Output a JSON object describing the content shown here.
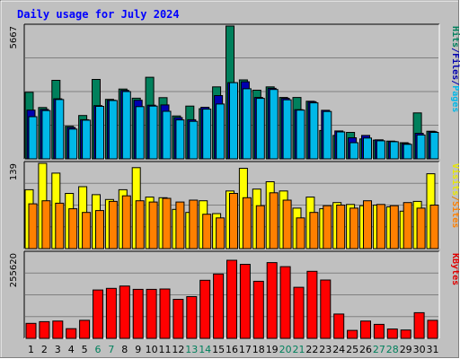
{
  "chart_data": {
    "type": "bar",
    "title": "Daily usage for July 2024",
    "days": [
      "1",
      "2",
      "3",
      "4",
      "5",
      "6",
      "7",
      "8",
      "9",
      "10",
      "11",
      "12",
      "13",
      "14",
      "15",
      "16",
      "17",
      "18",
      "19",
      "20",
      "21",
      "22",
      "23",
      "24",
      "25",
      "26",
      "27",
      "28",
      "29",
      "30",
      "31"
    ],
    "weekend_days": [
      "6",
      "7",
      "13",
      "14",
      "20",
      "21",
      "27",
      "28"
    ],
    "panels": [
      {
        "id": "hits",
        "ymax_label": "5667",
        "ymax": 5667,
        "labels": [
          {
            "text": "Hits",
            "color": "#00805c"
          },
          {
            "text": "/",
            "color": "#0000b0"
          },
          {
            "text": "Files",
            "color": "#0000b0"
          },
          {
            "text": "/",
            "color": "#0000b0"
          },
          {
            "text": "Pages",
            "color": "#00b8e8"
          }
        ],
        "series": [
          {
            "name": "Hits",
            "color": "#00805c",
            "values": [
              2840,
              2190,
              3350,
              1390,
              1850,
              3390,
              2540,
              2980,
              2590,
              3480,
              2610,
              1830,
              2250,
              2140,
              3070,
              5667,
              3370,
              2930,
              3070,
              2620,
              2620,
              2460,
              1210,
              1000,
              1130,
              850,
              800,
              760,
              690,
              1960,
              1180
            ]
          },
          {
            "name": "Files",
            "color": "#0000b0",
            "values": [
              2080,
              2110,
              2560,
              1340,
              1670,
              2270,
              2500,
              2920,
              2500,
              2290,
              2300,
              1760,
              1670,
              2200,
              2700,
              3250,
              3290,
              2620,
              3010,
              2580,
              2100,
              2440,
              2070,
              1190,
              900,
              1000,
              810,
              740,
              650,
              1090,
              1160
            ]
          },
          {
            "name": "Pages",
            "color": "#00b8e8",
            "values": [
              1800,
              2060,
              2530,
              1270,
              1650,
              2240,
              2490,
              2870,
              2230,
              2250,
              2030,
              1660,
              1600,
              2120,
              2340,
              3250,
              2990,
              2580,
              2960,
              2520,
              2080,
              2390,
              2020,
              1150,
              690,
              890,
              770,
              730,
              620,
              1020,
              1130
            ]
          }
        ]
      },
      {
        "id": "visits",
        "ymax_label": "139",
        "ymax": 139,
        "labels": [
          {
            "text": "Visits",
            "color": "#e8e800"
          },
          {
            "text": "/",
            "color": "#e88000"
          },
          {
            "text": "Sites",
            "color": "#ff8000"
          }
        ],
        "series": [
          {
            "name": "Visits",
            "color": "#ffff00",
            "values": [
              96,
              139,
              123,
              90,
              101,
              88,
              80,
              96,
              132,
              84,
              83,
              64,
              59,
              78,
              57,
              94,
              131,
              97,
              109,
              94,
              66,
              84,
              65,
              75,
              72,
              70,
              71,
              68,
              61,
              77,
              122
            ]
          },
          {
            "name": "Sites",
            "color": "#ff8000",
            "values": [
              73,
              78,
              74,
              65,
              59,
              62,
              77,
              86,
              78,
              76,
              82,
              76,
              79,
              56,
              50,
              90,
              83,
              70,
              91,
              79,
              50,
              59,
              70,
              71,
              66,
              78,
              72,
              70,
              75,
              66,
              71
            ]
          }
        ]
      },
      {
        "id": "kbytes",
        "ymax_label": "255620",
        "ymax": 255620,
        "labels": [
          {
            "text": "KBytes",
            "color": "#e00000"
          }
        ],
        "series": [
          {
            "name": "KBytes",
            "color": "#ff0000",
            "values": [
              45000,
              50000,
              52000,
              29000,
              54000,
              145000,
              150000,
              157000,
              147000,
              147000,
              148000,
              117000,
              125000,
              174000,
              193000,
              234000,
              222000,
              171000,
              227000,
              215000,
              153000,
              201000,
              175000,
              73000,
              24000,
              52000,
              42000,
              28000,
              25000,
              77000,
              54000
            ]
          }
        ]
      }
    ]
  }
}
